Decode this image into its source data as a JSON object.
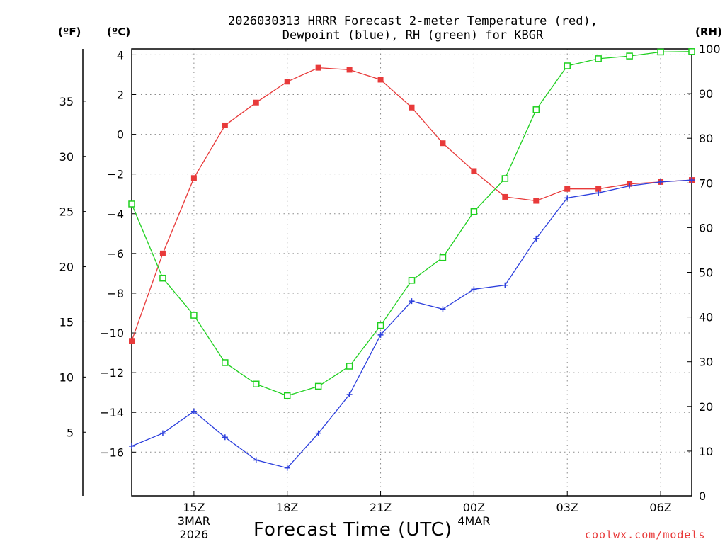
{
  "chart_data": {
    "type": "line",
    "title_line1": "2026030313 HRRR Forecast 2-meter Temperature (red),",
    "title_line2": "Dewpoint (blue), RH (green) for KBGR",
    "units": {
      "fahrenheit": "(ºF)",
      "celsius": "(ºC)",
      "rh": "(RH)"
    },
    "xlabel": "Forecast Time (UTC)",
    "credit": "coolwx.com/models",
    "x_hours": [
      13,
      14,
      15,
      16,
      17,
      18,
      19,
      20,
      21,
      22,
      23,
      24,
      25,
      26,
      27,
      28,
      29,
      30,
      31
    ],
    "x_ticks": [
      {
        "hour": 15,
        "label": "15Z",
        "sub1": "3MAR",
        "sub2": "2026"
      },
      {
        "hour": 18,
        "label": "18Z"
      },
      {
        "hour": 21,
        "label": "21Z"
      },
      {
        "hour": 24,
        "label": "00Z",
        "sub1": "4MAR"
      },
      {
        "hour": 27,
        "label": "03Z"
      },
      {
        "hour": 30,
        "label": "06Z"
      }
    ],
    "ylim_celsius": [
      -18.2,
      4.3
    ],
    "ylim_rh": [
      0,
      100
    ],
    "celsius_ticks": [
      4,
      2,
      0,
      -2,
      -4,
      -6,
      -8,
      -10,
      -12,
      -14,
      -16
    ],
    "celsius_tick_labels": [
      "4",
      "2",
      "0",
      "−2",
      "−4",
      "−6",
      "−8",
      "−10",
      "−12",
      "−14",
      "−16"
    ],
    "fahrenheit_ticks": [
      35,
      30,
      25,
      20,
      15,
      10,
      5
    ],
    "fahrenheit_tick_labels": [
      "35",
      "30",
      "25",
      "20",
      "15",
      "10",
      "5"
    ],
    "rh_ticks": [
      100,
      90,
      80,
      70,
      60,
      50,
      40,
      30,
      20,
      10,
      0
    ],
    "rh_tick_labels": [
      "100",
      "90",
      "80",
      "70",
      "60",
      "50",
      "40",
      "30",
      "20",
      "10",
      "0"
    ],
    "grid": true,
    "series": [
      {
        "name": "2-meter Temperature",
        "axis": "celsius",
        "color": "#e83a3a",
        "marker": "filled-square",
        "values": [
          -10.4,
          -6.0,
          -2.2,
          0.45,
          1.6,
          2.65,
          3.35,
          3.25,
          2.75,
          1.35,
          -0.45,
          -1.85,
          -3.15,
          -3.35,
          -2.75,
          -2.75,
          -2.5,
          -2.4,
          -2.3
        ]
      },
      {
        "name": "Dewpoint",
        "axis": "celsius",
        "color": "#2c3fdd",
        "marker": "plus",
        "values": [
          -15.7,
          -15.05,
          -13.95,
          -15.25,
          -16.4,
          -16.8,
          -15.05,
          -13.1,
          -10.1,
          -8.4,
          -8.8,
          -7.8,
          -7.6,
          -5.25,
          -3.2,
          -2.95,
          -2.6,
          -2.4,
          -2.3
        ]
      },
      {
        "name": "RH",
        "axis": "rh",
        "color": "#1fd01f",
        "marker": "open-square",
        "values": [
          65.3,
          48.7,
          40.4,
          29.8,
          25.0,
          22.4,
          24.5,
          29.0,
          38.1,
          48.2,
          53.3,
          63.6,
          71.0,
          86.4,
          96.2,
          97.8,
          98.4,
          99.3,
          99.4
        ]
      }
    ]
  }
}
